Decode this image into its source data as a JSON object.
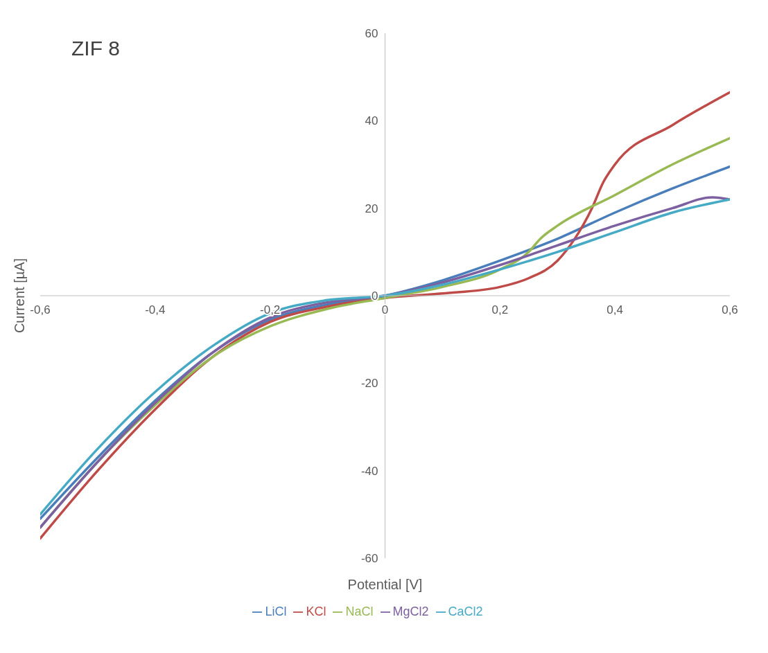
{
  "chart_data": {
    "type": "line",
    "title": "ZIF 8",
    "xlabel": "Potential [V]",
    "ylabel": "Current [µA]",
    "xlim": [
      -0.6,
      0.6
    ],
    "xticks": [
      {
        "value": -0.6,
        "label": "-0,6"
      },
      {
        "value": -0.4,
        "label": "-0,4"
      },
      {
        "value": -0.2,
        "label": "-0,2"
      },
      {
        "value": 0,
        "label": "0"
      },
      {
        "value": 0.2,
        "label": "0,2"
      },
      {
        "value": 0.4,
        "label": "0,4"
      },
      {
        "value": 0.6,
        "label": "0,6"
      }
    ],
    "ylim": [
      -60,
      60
    ],
    "yticks": [
      -60,
      -40,
      -20,
      0,
      20,
      40,
      60
    ],
    "grid": false,
    "legend": "bottom",
    "marker": "none",
    "line_style": "solid",
    "series": [
      {
        "name": "LiCl",
        "color": "#4a7ebb",
        "x": [
          -0.6,
          -0.5,
          -0.4,
          -0.3,
          -0.2,
          -0.1,
          0,
          0.1,
          0.2,
          0.3,
          0.4,
          0.5,
          0.6
        ],
        "values": [
          -51,
          -37,
          -24,
          -13,
          -5.5,
          -2,
          0,
          3.5,
          8,
          13,
          19,
          24.5,
          29.5
        ]
      },
      {
        "name": "KCl",
        "color": "#be4b48",
        "x": [
          -0.6,
          -0.5,
          -0.4,
          -0.3,
          -0.2,
          -0.1,
          0,
          0.1,
          0.2,
          0.25,
          0.3,
          0.33,
          0.36,
          0.38,
          0.4,
          0.5,
          0.6
        ],
        "values": [
          -55.5,
          -40,
          -26,
          -14,
          -6,
          -2.5,
          -0.5,
          0.5,
          2,
          4,
          8,
          13,
          20,
          26,
          30,
          39,
          46.5
        ]
      },
      {
        "name": "NaCl",
        "color": "#98b954",
        "x": [
          -0.6,
          -0.5,
          -0.4,
          -0.3,
          -0.2,
          -0.1,
          0,
          0.1,
          0.2,
          0.25,
          0.27,
          0.3,
          0.4,
          0.5,
          0.6
        ],
        "values": [
          -53,
          -38,
          -25,
          -14,
          -7,
          -3,
          -0.5,
          2,
          6,
          10,
          13,
          16,
          23,
          30,
          36
        ]
      },
      {
        "name": "MgCl2",
        "color": "#7d60a0",
        "x": [
          -0.6,
          -0.5,
          -0.4,
          -0.3,
          -0.2,
          -0.1,
          0,
          0.1,
          0.2,
          0.3,
          0.4,
          0.5,
          0.57,
          0.6
        ],
        "values": [
          -53,
          -38,
          -24.5,
          -13,
          -5,
          -1.5,
          0,
          3,
          7,
          11.5,
          16,
          20,
          22.5,
          22
        ]
      },
      {
        "name": "CaCl2",
        "color": "#46aac5",
        "x": [
          -0.6,
          -0.5,
          -0.4,
          -0.3,
          -0.2,
          -0.1,
          0,
          0.1,
          0.2,
          0.3,
          0.4,
          0.5,
          0.6
        ],
        "values": [
          -50,
          -35,
          -22,
          -11.5,
          -4,
          -1,
          0,
          2.5,
          6,
          10,
          14.5,
          19,
          22
        ]
      }
    ]
  }
}
